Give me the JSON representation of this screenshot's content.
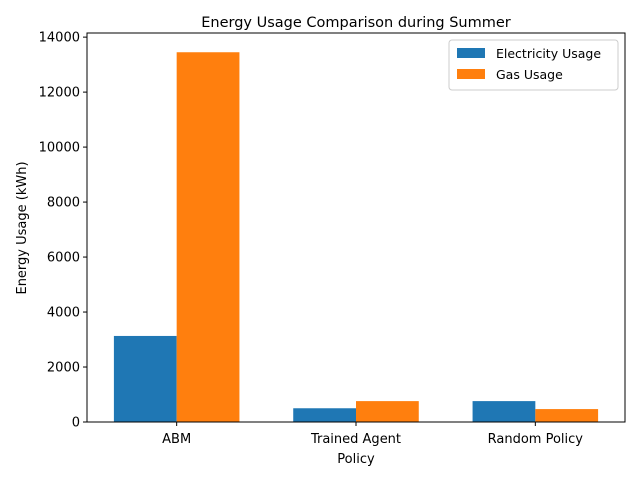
{
  "chart_data": {
    "type": "bar",
    "title": "Energy Usage Comparison during Summer",
    "xlabel": "Policy",
    "ylabel": "Energy Usage (kWh)",
    "categories": [
      "ABM",
      "Trained Agent",
      "Random Policy"
    ],
    "series": [
      {
        "name": "Electricity Usage",
        "color": "#1f77b4",
        "values": [
          3130,
          500,
          760
        ]
      },
      {
        "name": "Gas Usage",
        "color": "#ff7f0e",
        "values": [
          13450,
          760,
          470
        ]
      }
    ],
    "ylim": [
      0,
      14150
    ],
    "yticks": [
      0,
      2000,
      4000,
      6000,
      8000,
      10000,
      12000,
      14000
    ],
    "grid": false,
    "legend_position": "top-right"
  }
}
